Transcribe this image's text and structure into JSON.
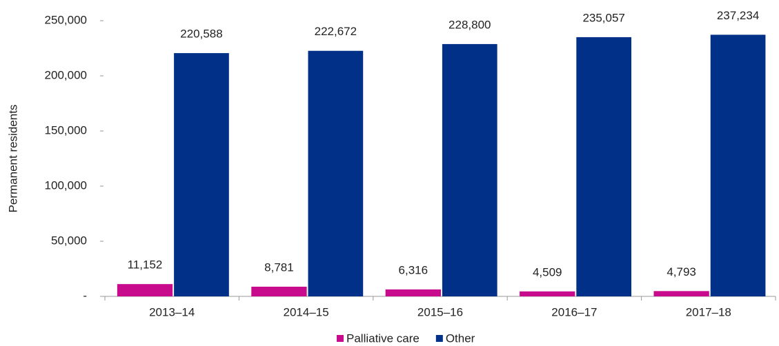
{
  "chart_data": {
    "type": "bar",
    "y_label": "Permanent residents",
    "categories": [
      "2013–14",
      "2014–15",
      "2015–16",
      "2016–17",
      "2017–18"
    ],
    "series": [
      {
        "name": "Palliative care",
        "color": "#c80a8c",
        "values": [
          11152,
          8781,
          6316,
          4509,
          4793
        ],
        "value_labels": [
          "11,152",
          "8,781",
          "6,316",
          "4,509",
          "4,793"
        ]
      },
      {
        "name": "Other",
        "color": "#003087",
        "values": [
          220588,
          222672,
          228800,
          235057,
          237234
        ],
        "value_labels": [
          "220,588",
          "222,672",
          "228,800",
          "235,057",
          "237,234"
        ]
      }
    ],
    "ylim": [
      0,
      250000
    ],
    "yticks": [
      {
        "value": 0,
        "label": "-"
      },
      {
        "value": 50000,
        "label": "50,000"
      },
      {
        "value": 100000,
        "label": "100,000"
      },
      {
        "value": 150000,
        "label": "150,000"
      },
      {
        "value": 200000,
        "label": "200,000"
      },
      {
        "value": 250000,
        "label": "250,000"
      }
    ],
    "grid": false,
    "legend": "bottom"
  }
}
